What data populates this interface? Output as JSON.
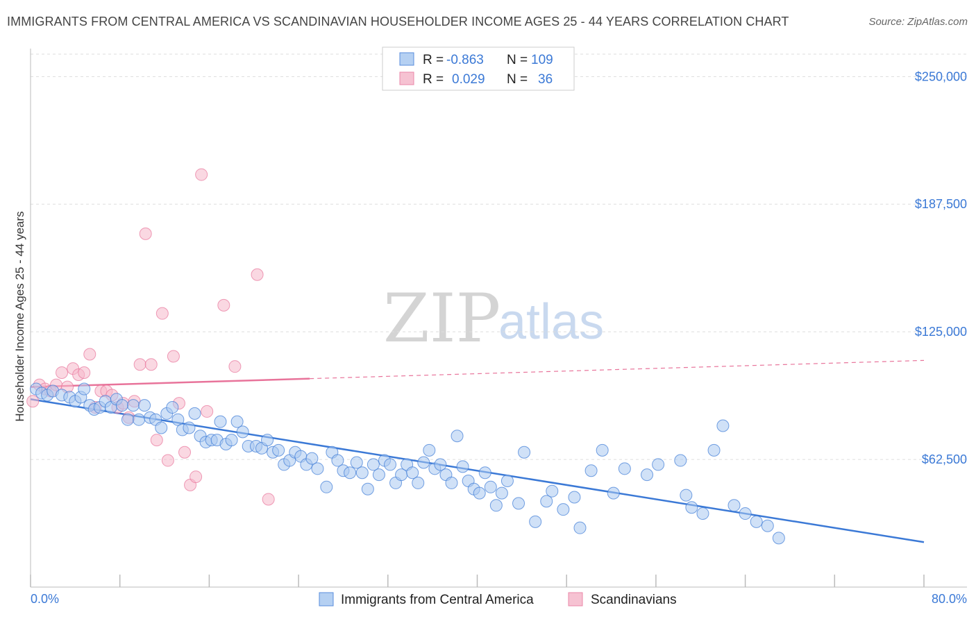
{
  "title": "IMMIGRANTS FROM CENTRAL AMERICA VS SCANDINAVIAN HOUSEHOLDER INCOME AGES 25 - 44 YEARS CORRELATION CHART",
  "source": "Source: ZipAtlas.com",
  "watermark": {
    "zip": "ZIP",
    "atlas": "atlas"
  },
  "colors": {
    "blue": "#3b79d6",
    "blue_fill": "#a9c8f0",
    "pink": "#e8739a",
    "pink_fill": "#f5b8cb"
  },
  "legend": {
    "rows": [
      {
        "r_label": "R =",
        "r_value": "-0.863",
        "n_label": "N =",
        "n_value": "109"
      },
      {
        "r_label": "R =",
        "r_value": "0.029",
        "n_label": "N =",
        "n_value": "36"
      }
    ]
  },
  "bottom_legend": [
    "Immigrants from Central America",
    "Scandinavians"
  ],
  "chart_data": {
    "type": "scatter",
    "title": "IMMIGRANTS FROM CENTRAL AMERICA VS SCANDINAVIAN HOUSEHOLDER INCOME AGES 25 - 44 YEARS CORRELATION CHART",
    "xlabel": "",
    "ylabel": "Householder Income Ages 25 - 44 years",
    "xlim": [
      0,
      80
    ],
    "ylim": [
      0,
      262000
    ],
    "x_tick_labels": [
      "0.0%",
      "80.0%"
    ],
    "y_ticks": [
      62500,
      125000,
      187500,
      250000
    ],
    "y_tick_labels": [
      "$62,500",
      "$125,000",
      "$187,500",
      "$250,000"
    ],
    "grid": true,
    "series": [
      {
        "name": "Immigrants from Central America",
        "color": "#3b79d6",
        "points": [
          [
            0.5,
            97000
          ],
          [
            1.0,
            95000
          ],
          [
            1.5,
            94000
          ],
          [
            2.0,
            96000
          ],
          [
            2.8,
            94000
          ],
          [
            3.5,
            93000
          ],
          [
            4.0,
            91000
          ],
          [
            4.5,
            93000
          ],
          [
            4.8,
            97000
          ],
          [
            5.3,
            89000
          ],
          [
            5.7,
            87000
          ],
          [
            6.2,
            88000
          ],
          [
            6.7,
            91000
          ],
          [
            7.2,
            88000
          ],
          [
            7.7,
            92000
          ],
          [
            8.2,
            89000
          ],
          [
            8.7,
            82000
          ],
          [
            9.2,
            89000
          ],
          [
            9.7,
            82000
          ],
          [
            10.2,
            89000
          ],
          [
            10.7,
            83000
          ],
          [
            11.2,
            82000
          ],
          [
            11.7,
            78000
          ],
          [
            12.2,
            85000
          ],
          [
            12.7,
            88000
          ],
          [
            13.2,
            82000
          ],
          [
            13.6,
            77000
          ],
          [
            14.2,
            78000
          ],
          [
            14.7,
            85000
          ],
          [
            15.2,
            74000
          ],
          [
            15.7,
            71000
          ],
          [
            16.2,
            72000
          ],
          [
            16.7,
            72000
          ],
          [
            17.0,
            81000
          ],
          [
            17.5,
            70000
          ],
          [
            18.0,
            72000
          ],
          [
            18.5,
            81000
          ],
          [
            19.0,
            76000
          ],
          [
            19.5,
            69000
          ],
          [
            20.2,
            69000
          ],
          [
            20.7,
            68000
          ],
          [
            21.2,
            72000
          ],
          [
            21.7,
            66000
          ],
          [
            22.2,
            67000
          ],
          [
            22.7,
            60000
          ],
          [
            23.2,
            62000
          ],
          [
            23.7,
            66000
          ],
          [
            24.2,
            64000
          ],
          [
            24.7,
            60000
          ],
          [
            25.2,
            63000
          ],
          [
            25.7,
            58000
          ],
          [
            26.5,
            49000
          ],
          [
            27.0,
            66000
          ],
          [
            27.5,
            62000
          ],
          [
            28.0,
            57000
          ],
          [
            28.6,
            56000
          ],
          [
            29.2,
            61000
          ],
          [
            29.7,
            56000
          ],
          [
            30.2,
            48000
          ],
          [
            30.7,
            60000
          ],
          [
            31.2,
            55000
          ],
          [
            31.7,
            62000
          ],
          [
            32.2,
            60000
          ],
          [
            32.7,
            51000
          ],
          [
            33.2,
            55000
          ],
          [
            33.7,
            60000
          ],
          [
            34.2,
            56000
          ],
          [
            34.7,
            51000
          ],
          [
            35.2,
            61000
          ],
          [
            35.7,
            67000
          ],
          [
            36.2,
            58000
          ],
          [
            36.7,
            60000
          ],
          [
            37.2,
            55000
          ],
          [
            37.7,
            51000
          ],
          [
            38.2,
            74000
          ],
          [
            38.7,
            59000
          ],
          [
            39.2,
            52000
          ],
          [
            39.7,
            48000
          ],
          [
            40.2,
            46000
          ],
          [
            40.7,
            56000
          ],
          [
            41.2,
            49000
          ],
          [
            41.7,
            40000
          ],
          [
            42.2,
            46000
          ],
          [
            42.7,
            52000
          ],
          [
            43.7,
            41000
          ],
          [
            44.2,
            66000
          ],
          [
            45.2,
            32000
          ],
          [
            46.2,
            42000
          ],
          [
            46.7,
            47000
          ],
          [
            47.7,
            38000
          ],
          [
            48.7,
            44000
          ],
          [
            49.2,
            29000
          ],
          [
            50.2,
            57000
          ],
          [
            51.2,
            67000
          ],
          [
            52.2,
            46000
          ],
          [
            53.2,
            58000
          ],
          [
            55.2,
            55000
          ],
          [
            56.2,
            60000
          ],
          [
            58.2,
            62000
          ],
          [
            58.7,
            45000
          ],
          [
            59.2,
            39000
          ],
          [
            60.2,
            36000
          ],
          [
            61.2,
            67000
          ],
          [
            62.0,
            79000
          ],
          [
            63.0,
            40000
          ],
          [
            64.0,
            36000
          ],
          [
            65.0,
            32000
          ],
          [
            66.0,
            30000
          ],
          [
            67.0,
            24000
          ]
        ],
        "trend": {
          "x": [
            0,
            80
          ],
          "y": [
            92000,
            22000
          ]
        }
      },
      {
        "name": "Scandinavians",
        "color": "#e8739a",
        "points": [
          [
            0.2,
            91000
          ],
          [
            0.8,
            99000
          ],
          [
            1.3,
            97000
          ],
          [
            1.8,
            96000
          ],
          [
            2.3,
            99000
          ],
          [
            2.8,
            105000
          ],
          [
            3.3,
            98000
          ],
          [
            3.8,
            107000
          ],
          [
            4.3,
            104000
          ],
          [
            4.8,
            105000
          ],
          [
            5.3,
            114000
          ],
          [
            5.8,
            88000
          ],
          [
            6.3,
            96000
          ],
          [
            6.8,
            96000
          ],
          [
            7.3,
            94000
          ],
          [
            7.8,
            88000
          ],
          [
            8.3,
            90000
          ],
          [
            8.8,
            83000
          ],
          [
            9.3,
            91000
          ],
          [
            9.8,
            109000
          ],
          [
            10.3,
            173000
          ],
          [
            10.8,
            109000
          ],
          [
            11.3,
            72000
          ],
          [
            11.8,
            134000
          ],
          [
            12.3,
            62000
          ],
          [
            12.8,
            113000
          ],
          [
            13.3,
            90000
          ],
          [
            13.8,
            66000
          ],
          [
            14.3,
            50000
          ],
          [
            14.8,
            54000
          ],
          [
            15.3,
            202000
          ],
          [
            15.8,
            86000
          ],
          [
            17.3,
            138000
          ],
          [
            18.3,
            108000
          ],
          [
            20.3,
            153000
          ],
          [
            21.3,
            43000
          ]
        ],
        "trend": {
          "x": [
            0,
            80
          ],
          "y": [
            98000,
            111000
          ],
          "solid_until_x": 25
        }
      }
    ]
  }
}
